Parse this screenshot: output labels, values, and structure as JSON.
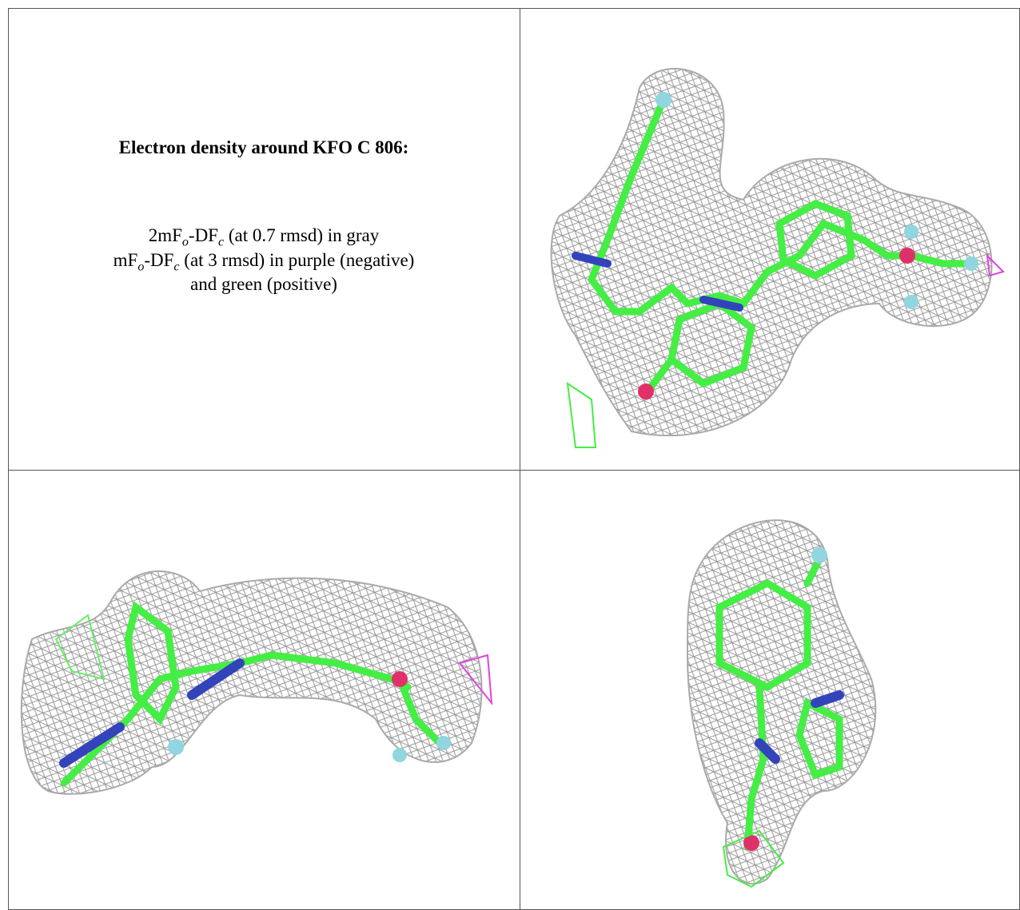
{
  "title": "Electron density around KFO C 806:",
  "legend": {
    "line1": [
      "2mF",
      "o",
      "-DF",
      "c",
      " (at 0.7 rmsd) in gray"
    ],
    "line2": [
      "mF",
      "o",
      "-DF",
      "c",
      " (at 3 rmsd) in purple (negative)"
    ],
    "line3": "and green (positive)"
  }
}
